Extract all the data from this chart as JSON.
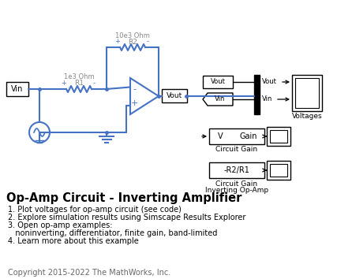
{
  "title": "Op-Amp Circuit - Inverting Amplifier",
  "bg_color": "#ffffff",
  "circuit_color": "#4472c4",
  "box_color": "#000000",
  "items": [
    "1. Plot voltages for op-amp circuit (see code)",
    "2. Explore simulation results using Simscape Results Explorer",
    "3. Open op-amp examples:",
    "   noninverting, differentiator, finite gain, band-limited",
    "4. Learn more about this example"
  ],
  "copyright": "Copyright 2015-2022 The MathWorks, Inc."
}
